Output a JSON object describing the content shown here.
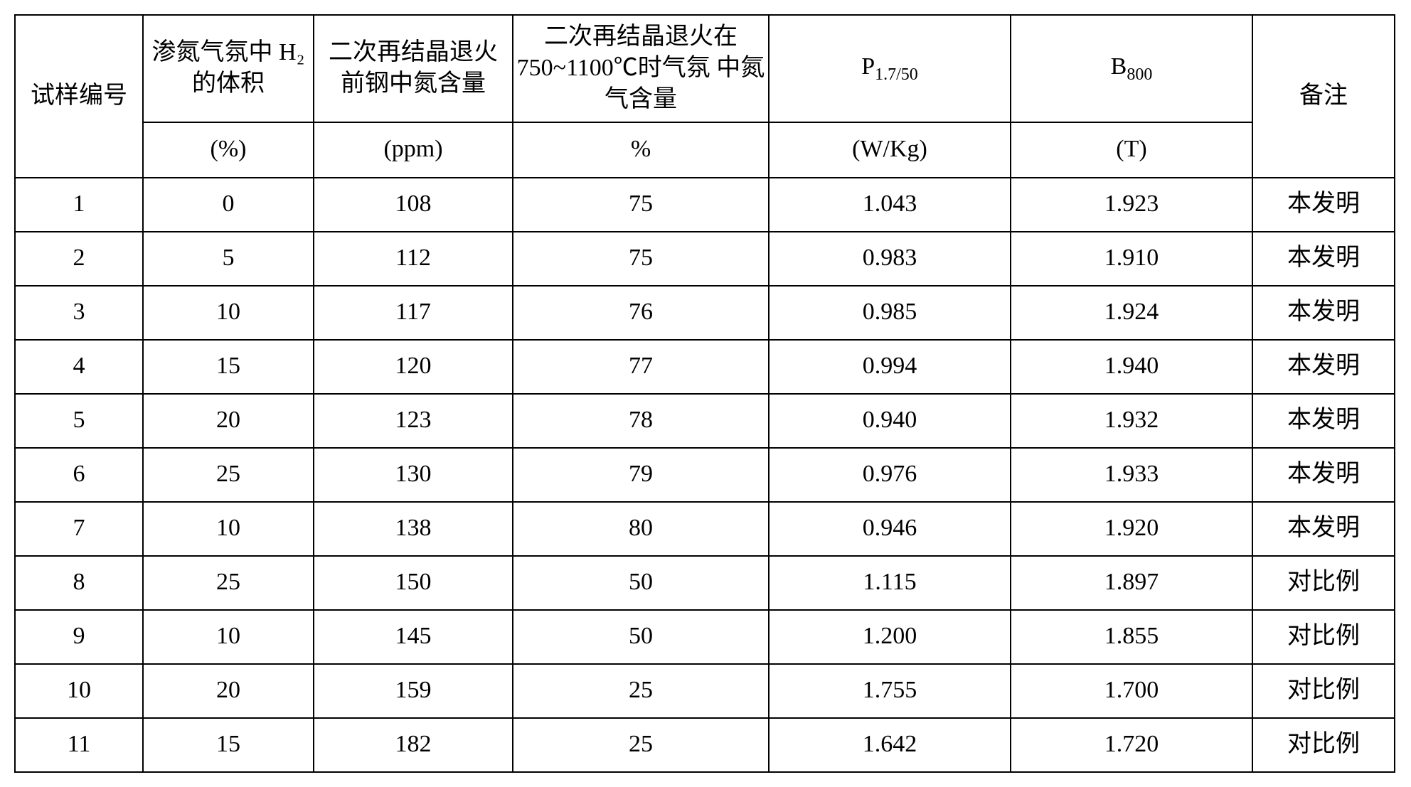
{
  "table": {
    "headers": {
      "c1": "试样编号",
      "c2": "渗氮气氛中\nH₂的体积",
      "c3": "二次再结晶退火\n前钢中氮含量",
      "c4": "二次再结晶退火在\n750~1100℃时气氛\n中氮气含量",
      "c5_pre": "P",
      "c5_sub": "1.7/50",
      "c6_pre": "B",
      "c6_sub": "800",
      "c7": "备注"
    },
    "units": {
      "c2": "(%)",
      "c3": "(ppm)",
      "c4": "%",
      "c5": "(W/Kg)",
      "c6": "(T)"
    },
    "rows": [
      {
        "n": "1",
        "h2": "0",
        "npp": "108",
        "n2": "75",
        "p": "1.043",
        "b": "1.923",
        "note": "本发明"
      },
      {
        "n": "2",
        "h2": "5",
        "npp": "112",
        "n2": "75",
        "p": "0.983",
        "b": "1.910",
        "note": "本发明"
      },
      {
        "n": "3",
        "h2": "10",
        "npp": "117",
        "n2": "76",
        "p": "0.985",
        "b": "1.924",
        "note": "本发明"
      },
      {
        "n": "4",
        "h2": "15",
        "npp": "120",
        "n2": "77",
        "p": "0.994",
        "b": "1.940",
        "note": "本发明"
      },
      {
        "n": "5",
        "h2": "20",
        "npp": "123",
        "n2": "78",
        "p": "0.940",
        "b": "1.932",
        "note": "本发明"
      },
      {
        "n": "6",
        "h2": "25",
        "npp": "130",
        "n2": "79",
        "p": "0.976",
        "b": "1.933",
        "note": "本发明"
      },
      {
        "n": "7",
        "h2": "10",
        "npp": "138",
        "n2": "80",
        "p": "0.946",
        "b": "1.920",
        "note": "本发明"
      },
      {
        "n": "8",
        "h2": "25",
        "npp": "150",
        "n2": "50",
        "p": "1.115",
        "b": "1.897",
        "note": "对比例"
      },
      {
        "n": "9",
        "h2": "10",
        "npp": "145",
        "n2": "50",
        "p": "1.200",
        "b": "1.855",
        "note": "对比例"
      },
      {
        "n": "10",
        "h2": "20",
        "npp": "159",
        "n2": "25",
        "p": "1.755",
        "b": "1.700",
        "note": "对比例"
      },
      {
        "n": "11",
        "h2": "15",
        "npp": "182",
        "n2": "25",
        "p": "1.642",
        "b": "1.720",
        "note": "对比例"
      }
    ]
  }
}
